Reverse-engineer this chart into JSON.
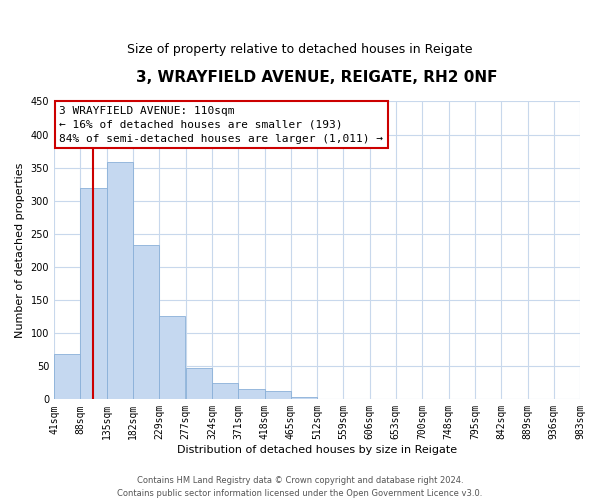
{
  "title": "3, WRAYFIELD AVENUE, REIGATE, RH2 0NF",
  "subtitle": "Size of property relative to detached houses in Reigate",
  "xlabel": "Distribution of detached houses by size in Reigate",
  "ylabel": "Number of detached properties",
  "bin_edges": [
    41,
    88,
    135,
    182,
    229,
    277,
    324,
    371,
    418,
    465,
    512,
    559,
    606,
    653,
    700,
    748,
    795,
    842,
    889,
    936,
    983
  ],
  "bar_heights": [
    68,
    320,
    358,
    233,
    126,
    48,
    25,
    16,
    12,
    4,
    0,
    0,
    0,
    0,
    0,
    1,
    0,
    0,
    0,
    1
  ],
  "bar_color": "#c5d8f0",
  "bar_edge_color": "#8ab0d8",
  "marker_x": 110,
  "marker_color": "#cc0000",
  "ylim": [
    0,
    450
  ],
  "xlim_left": 41,
  "xlim_right": 983,
  "annotation_title": "3 WRAYFIELD AVENUE: 110sqm",
  "annotation_line1": "← 16% of detached houses are smaller (193)",
  "annotation_line2": "84% of semi-detached houses are larger (1,011) →",
  "annotation_box_facecolor": "#ffffff",
  "annotation_box_edgecolor": "#cc0000",
  "tick_labels": [
    "41sqm",
    "88sqm",
    "135sqm",
    "182sqm",
    "229sqm",
    "277sqm",
    "324sqm",
    "371sqm",
    "418sqm",
    "465sqm",
    "512sqm",
    "559sqm",
    "606sqm",
    "653sqm",
    "700sqm",
    "748sqm",
    "795sqm",
    "842sqm",
    "889sqm",
    "936sqm",
    "983sqm"
  ],
  "grid_color": "#c8d8ec",
  "footer_line1": "Contains HM Land Registry data © Crown copyright and database right 2024.",
  "footer_line2": "Contains public sector information licensed under the Open Government Licence v3.0.",
  "title_fontsize": 11,
  "subtitle_fontsize": 9,
  "ylabel_fontsize": 8,
  "xlabel_fontsize": 8,
  "tick_fontsize": 7,
  "annotation_fontsize": 8,
  "footer_fontsize": 6
}
